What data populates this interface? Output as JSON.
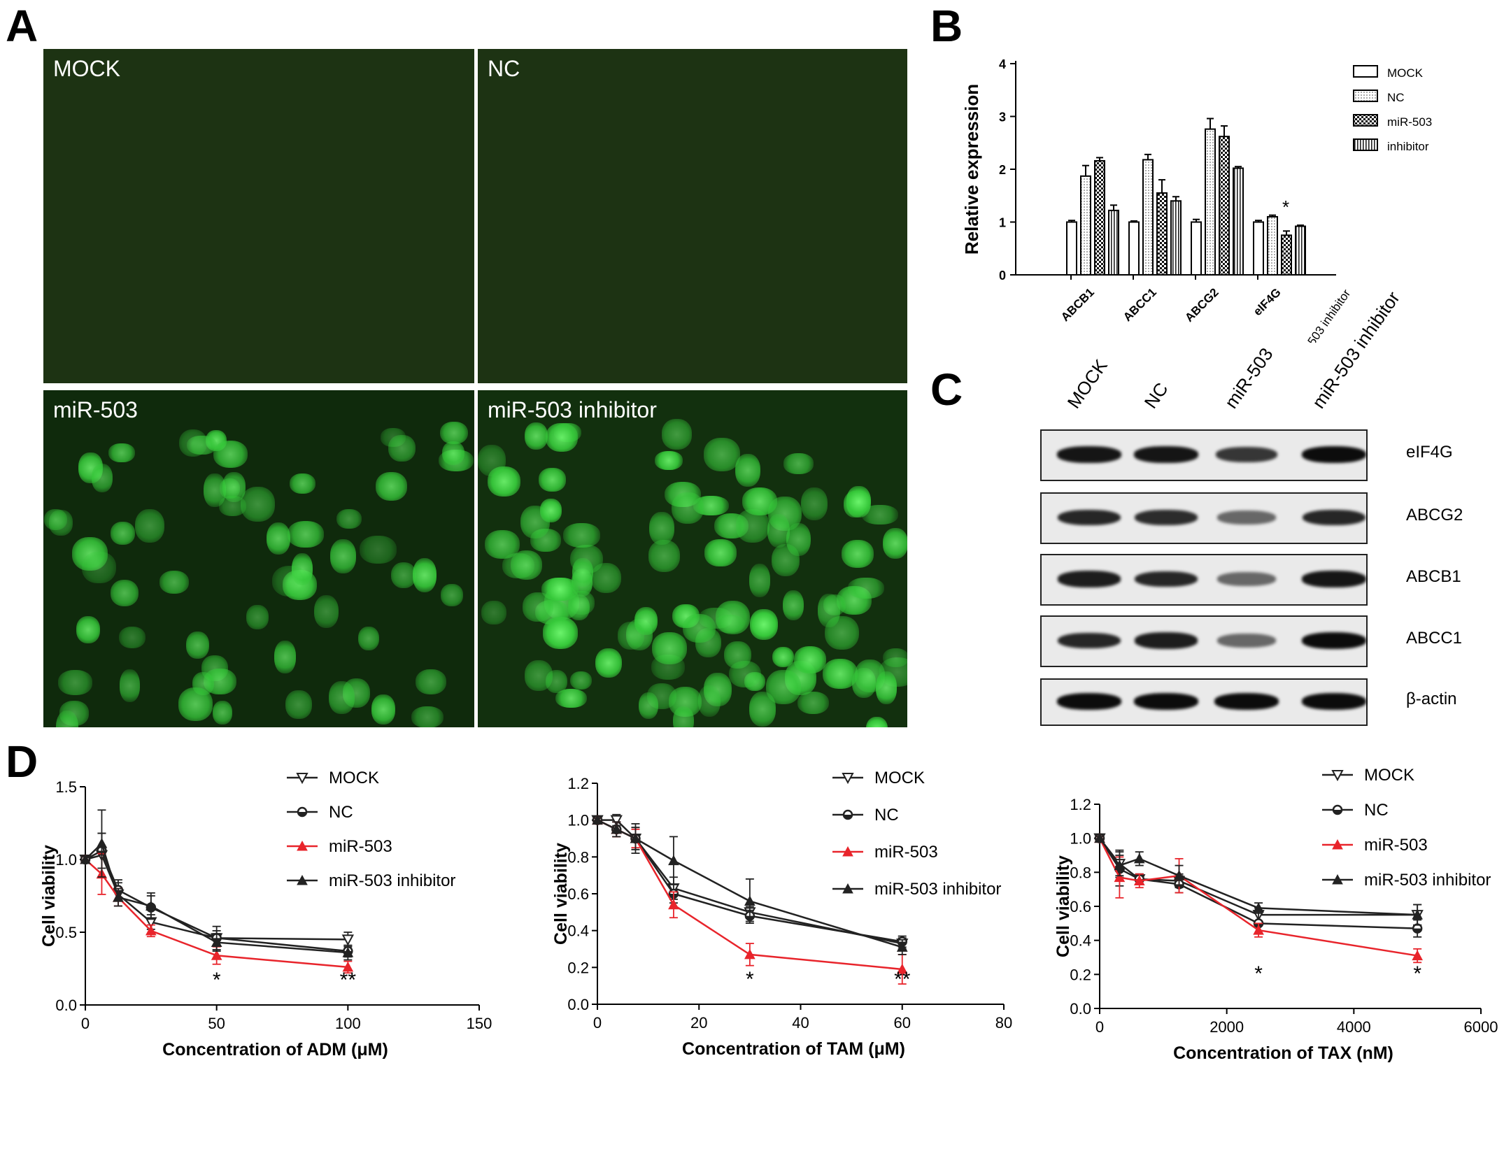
{
  "panel_labels": {
    "a": "A",
    "b": "B",
    "c": "C",
    "d": "D"
  },
  "panel_a": {
    "titles": [
      "MOCK",
      "NC",
      "miR-503",
      "miR-503  inhibitor"
    ]
  },
  "panel_b": {
    "chart_data": {
      "type": "bar",
      "ylabel": "Relative expression",
      "ylim": [
        0,
        4
      ],
      "yticks": [
        "0",
        "1",
        "2",
        "3",
        "4"
      ],
      "categories": [
        "ABCB1",
        "ABCC1",
        "ABCG2",
        "eIF4G"
      ],
      "series": [
        {
          "name": "MOCK",
          "values": [
            1.0,
            1.0,
            1.0,
            1.0
          ],
          "errors": [
            0.03,
            0.02,
            0.05,
            0.03
          ]
        },
        {
          "name": "NC",
          "values": [
            1.87,
            2.18,
            2.76,
            1.1
          ],
          "errors": [
            0.2,
            0.1,
            0.2,
            0.03
          ]
        },
        {
          "name": "miR-503",
          "values": [
            2.16,
            1.55,
            2.62,
            0.75
          ],
          "errors": [
            0.06,
            0.25,
            0.2,
            0.08
          ]
        },
        {
          "name": "inhibitor",
          "values": [
            1.22,
            1.4,
            2.02,
            0.92
          ],
          "errors": [
            0.1,
            0.08,
            0.03,
            0.02
          ]
        }
      ],
      "annotation": "*",
      "annotation_category": "eIF4G"
    }
  },
  "panel_c": {
    "lanes": [
      "MOCK",
      "NC",
      "miR-503",
      "miR-503 inhibitor"
    ],
    "proteins": [
      "eIF4G",
      "ABCG2",
      "ABCB1",
      "ABCC1",
      "β-actin"
    ],
    "band_intensity": [
      [
        0.95,
        0.95,
        0.75,
        1.0
      ],
      [
        0.85,
        0.8,
        0.45,
        0.85
      ],
      [
        0.9,
        0.85,
        0.45,
        0.95
      ],
      [
        0.85,
        0.9,
        0.45,
        1.0
      ],
      [
        1.0,
        1.0,
        1.0,
        1.0
      ]
    ]
  },
  "panel_d": {
    "chart_data": [
      {
        "type": "line",
        "xlabel": "Concentration of ADM (μM)",
        "ylabel": "Cell viability",
        "xlim": [
          0,
          150
        ],
        "ylim": [
          0,
          1.5
        ],
        "xticks": [
          "0",
          "50",
          "100",
          "150"
        ],
        "yticks": [
          "0.0",
          "0.5",
          "1.0",
          "1.5"
        ],
        "x": [
          0,
          6.25,
          12.5,
          25,
          50,
          100
        ],
        "series": [
          {
            "name": "MOCK",
            "marker": "down",
            "color": "#222222",
            "values": [
              1.0,
              1.03,
              0.76,
              0.57,
              0.46,
              0.45
            ],
            "errors": [
              0.02,
              0.15,
              0.08,
              0.05,
              0.05,
              0.05
            ]
          },
          {
            "name": "NC",
            "marker": "circle",
            "color": "#222222",
            "values": [
              1.0,
              1.06,
              0.79,
              0.67,
              0.46,
              0.37
            ],
            "errors": [
              0.02,
              0.12,
              0.07,
              0.08,
              0.08,
              0.04
            ]
          },
          {
            "name": "miR-503",
            "marker": "up",
            "color": "#e8242b",
            "values": [
              1.0,
              0.9,
              0.74,
              0.51,
              0.34,
              0.26
            ],
            "errors": [
              0.02,
              0.14,
              0.06,
              0.04,
              0.06,
              0.04
            ]
          },
          {
            "name": "miR-503 inhibitor",
            "marker": "up",
            "color": "#222222",
            "values": [
              1.0,
              1.11,
              0.74,
              0.68,
              0.43,
              0.36
            ],
            "errors": [
              0.02,
              0.23,
              0.06,
              0.09,
              0.06,
              0.05
            ]
          }
        ],
        "annotations": [
          {
            "x": 50,
            "text": "*"
          },
          {
            "x": 100,
            "text": "**"
          }
        ]
      },
      {
        "type": "line",
        "xlabel": "Concentration of TAM (μM)",
        "ylabel": "Cell  viability",
        "xlim": [
          0,
          80
        ],
        "ylim": [
          0,
          1.2
        ],
        "xticks": [
          "0",
          "20",
          "40",
          "60",
          "80"
        ],
        "yticks": [
          "0.0",
          "0.2",
          "0.4",
          "0.6",
          "0.8",
          "1.0",
          "1.2"
        ],
        "x": [
          0,
          3.75,
          7.5,
          15,
          30,
          60
        ],
        "series": [
          {
            "name": "MOCK",
            "marker": "down",
            "color": "#222222",
            "values": [
              1.0,
              1.0,
              0.9,
              0.63,
              0.5,
              0.33
            ],
            "errors": [
              0.01,
              0.03,
              0.08,
              0.06,
              0.03,
              0.03
            ]
          },
          {
            "name": "NC",
            "marker": "circle",
            "color": "#222222",
            "values": [
              1.0,
              0.95,
              0.9,
              0.6,
              0.48,
              0.34
            ],
            "errors": [
              0.01,
              0.04,
              0.06,
              0.05,
              0.03,
              0.03
            ]
          },
          {
            "name": "miR-503",
            "marker": "up",
            "color": "#e8242b",
            "values": [
              1.0,
              0.95,
              0.9,
              0.54,
              0.27,
              0.19
            ],
            "errors": [
              0.01,
              0.04,
              0.05,
              0.07,
              0.06,
              0.08
            ]
          },
          {
            "name": "miR-503 inhibitor",
            "marker": "up",
            "color": "#222222",
            "values": [
              1.0,
              0.95,
              0.9,
              0.78,
              0.56,
              0.31
            ],
            "errors": [
              0.01,
              0.04,
              0.06,
              0.13,
              0.12,
              0.04
            ]
          }
        ],
        "annotations": [
          {
            "x": 30,
            "text": "*"
          },
          {
            "x": 60,
            "text": "**"
          }
        ]
      },
      {
        "type": "line",
        "xlabel": "Concentration of TAX (nM)",
        "ylabel": "Cell  viability",
        "xlim": [
          0,
          6000
        ],
        "ylim": [
          0,
          1.2
        ],
        "xticks": [
          "0",
          "2000",
          "4000",
          "6000"
        ],
        "yticks": [
          "0.0",
          "0.2",
          "0.4",
          "0.6",
          "0.8",
          "1.0",
          "1.2"
        ],
        "x": [
          0,
          312.5,
          625,
          1250,
          2500,
          5000
        ],
        "series": [
          {
            "name": "MOCK",
            "marker": "down",
            "color": "#222222",
            "values": [
              1.0,
              0.85,
              0.76,
              0.75,
              0.55,
              0.55
            ],
            "errors": [
              0.01,
              0.08,
              0.03,
              0.04,
              0.04,
              0.06
            ]
          },
          {
            "name": "NC",
            "marker": "circle",
            "color": "#222222",
            "values": [
              1.0,
              0.82,
              0.76,
              0.73,
              0.5,
              0.47
            ],
            "errors": [
              0.01,
              0.1,
              0.03,
              0.05,
              0.06,
              0.05
            ]
          },
          {
            "name": "miR-503",
            "marker": "up",
            "color": "#e8242b",
            "values": [
              1.0,
              0.77,
              0.75,
              0.78,
              0.46,
              0.31
            ],
            "errors": [
              0.01,
              0.12,
              0.04,
              0.1,
              0.04,
              0.04
            ]
          },
          {
            "name": "miR-503 inhibitor",
            "marker": "up",
            "color": "#222222",
            "values": [
              1.0,
              0.84,
              0.88,
              0.78,
              0.59,
              0.55
            ],
            "errors": [
              0.01,
              0.06,
              0.04,
              0.06,
              0.03,
              0.06
            ]
          }
        ],
        "annotations": [
          {
            "x": 2500,
            "text": "*"
          },
          {
            "x": 5000,
            "text": "*"
          }
        ]
      }
    ]
  }
}
